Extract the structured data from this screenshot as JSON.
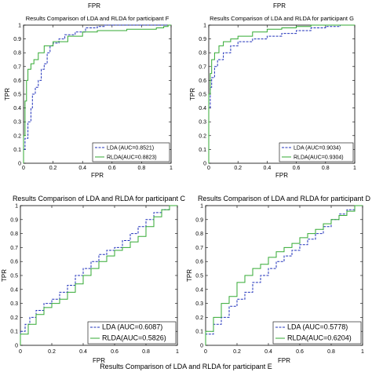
{
  "figure": {
    "fragment_top_left": "FPR",
    "fragment_top_right": "FPR",
    "footer_title": "Results Comparison of LDA and RLDA for participant E"
  },
  "colors": {
    "lda": "#2233bb",
    "rlda": "#33aa33",
    "axis": "#000000"
  },
  "chart_data": [
    {
      "type": "line",
      "title": "Results Comparison of LDA and RLDA for participant F",
      "xlabel": "FPR",
      "ylabel": "TPR",
      "xlim": [
        0,
        1
      ],
      "ylim": [
        0,
        1
      ],
      "xticks": [
        "0",
        "0.2",
        "0.4",
        "0.6",
        "0.8",
        "1"
      ],
      "yticks": [
        "0",
        "0.1",
        "0.2",
        "0.3",
        "0.4",
        "0.5",
        "0.6",
        "0.7",
        "0.8",
        "0.9",
        "1"
      ],
      "legend_position": "bottom-right",
      "series": [
        {
          "name": "LDA   (AUC=0.8521)",
          "style": "dashed",
          "x": [
            0,
            0.01,
            0.03,
            0.05,
            0.06,
            0.08,
            0.1,
            0.12,
            0.14,
            0.16,
            0.18,
            0.2,
            0.24,
            0.28,
            0.35,
            0.42,
            0.5,
            0.55,
            0.6,
            1
          ],
          "y": [
            0,
            0.1,
            0.18,
            0.3,
            0.4,
            0.5,
            0.55,
            0.6,
            0.68,
            0.72,
            0.8,
            0.85,
            0.87,
            0.9,
            0.93,
            0.95,
            0.98,
            0.99,
            1,
            1
          ]
        },
        {
          "name": "RLDA(AUC=0.8823)",
          "style": "solid",
          "x": [
            0,
            0.01,
            0.02,
            0.03,
            0.05,
            0.07,
            0.1,
            0.14,
            0.2,
            0.3,
            0.4,
            0.5,
            0.6,
            0.7,
            0.8,
            0.9,
            0.95,
            0.98,
            1
          ],
          "y": [
            0,
            0.2,
            0.45,
            0.6,
            0.68,
            0.72,
            0.75,
            0.8,
            0.85,
            0.88,
            0.92,
            0.95,
            0.96,
            0.96,
            0.97,
            0.97,
            0.98,
            0.99,
            1
          ]
        }
      ]
    },
    {
      "type": "line",
      "title": "Results Comparison of LDA and RLDA for participant G",
      "xlabel": "FPR",
      "ylabel": "TPR",
      "xlim": [
        0,
        1
      ],
      "ylim": [
        0,
        1
      ],
      "xticks": [
        "0",
        "0.2",
        "0.4",
        "0.6",
        "0.8",
        "1"
      ],
      "yticks": [
        "0",
        "0.1",
        "0.2",
        "0.3",
        "0.4",
        "0.5",
        "0.6",
        "0.7",
        "0.8",
        "0.9",
        "1"
      ],
      "legend_position": "bottom-right",
      "series": [
        {
          "name": "LDA   (AUC=0.9034)",
          "style": "dashed",
          "x": [
            0,
            0.01,
            0.02,
            0.04,
            0.06,
            0.1,
            0.15,
            0.2,
            0.3,
            0.4,
            0.5,
            0.6,
            0.7,
            0.8,
            0.9,
            1
          ],
          "y": [
            0,
            0.4,
            0.55,
            0.62,
            0.7,
            0.75,
            0.8,
            0.85,
            0.88,
            0.9,
            0.92,
            0.94,
            0.96,
            0.98,
            0.99,
            1
          ]
        },
        {
          "name": "RLDA(AUC=0.9304)",
          "style": "solid",
          "x": [
            0,
            0.01,
            0.02,
            0.04,
            0.07,
            0.1,
            0.15,
            0.2,
            0.3,
            0.4,
            0.5,
            0.6,
            0.7,
            0.8,
            0.9,
            1
          ],
          "y": [
            0,
            0.5,
            0.65,
            0.75,
            0.8,
            0.85,
            0.88,
            0.9,
            0.92,
            0.95,
            0.97,
            0.98,
            0.99,
            1,
            1,
            1
          ]
        }
      ]
    },
    {
      "type": "line",
      "title": "Results Comparison of LDA and RLDA for participant C",
      "xlabel": "FPR",
      "ylabel": "TPR",
      "xlim": [
        0,
        1
      ],
      "ylim": [
        0,
        1
      ],
      "xticks": [
        "0",
        "0.2",
        "0.4",
        "0.6",
        "0.8",
        "1"
      ],
      "yticks": [
        "0",
        "0.1",
        "0.2",
        "0.3",
        "0.4",
        "0.5",
        "0.6",
        "0.7",
        "0.8",
        "0.9",
        "1"
      ],
      "legend_position": "bottom-right",
      "series": [
        {
          "name": "LDA   (AUC=0.6087)",
          "style": "dashed",
          "x": [
            0,
            0.03,
            0.06,
            0.1,
            0.15,
            0.2,
            0.25,
            0.3,
            0.35,
            0.4,
            0.45,
            0.5,
            0.55,
            0.6,
            0.65,
            0.7,
            0.75,
            0.8,
            0.85,
            0.9,
            0.95,
            1
          ],
          "y": [
            0,
            0.1,
            0.15,
            0.2,
            0.25,
            0.3,
            0.33,
            0.38,
            0.43,
            0.5,
            0.55,
            0.6,
            0.65,
            0.68,
            0.7,
            0.75,
            0.8,
            0.85,
            0.9,
            0.95,
            0.97,
            1
          ]
        },
        {
          "name": "RLDA(AUC=0.5826)",
          "style": "solid",
          "x": [
            0,
            0.05,
            0.1,
            0.15,
            0.2,
            0.25,
            0.3,
            0.35,
            0.4,
            0.45,
            0.5,
            0.55,
            0.6,
            0.65,
            0.7,
            0.75,
            0.8,
            0.85,
            0.9,
            0.95,
            1
          ],
          "y": [
            0,
            0.08,
            0.15,
            0.22,
            0.27,
            0.3,
            0.33,
            0.38,
            0.44,
            0.5,
            0.55,
            0.6,
            0.64,
            0.68,
            0.7,
            0.74,
            0.78,
            0.85,
            0.92,
            0.97,
            1
          ]
        }
      ]
    },
    {
      "type": "line",
      "title": "Results Comparison of LDA and RLDA for participant D",
      "xlabel": "FPR",
      "ylabel": "TPR",
      "xlim": [
        0,
        1
      ],
      "ylim": [
        0,
        1
      ],
      "xticks": [
        "0",
        "0.2",
        "0.4",
        "0.6",
        "0.8",
        "1"
      ],
      "yticks": [
        "0",
        "0.1",
        "0.2",
        "0.3",
        "0.4",
        "0.5",
        "0.6",
        "0.7",
        "0.8",
        "0.9",
        "1"
      ],
      "legend_position": "bottom-right",
      "series": [
        {
          "name": "LDA   (AUC=0.5778)",
          "style": "dashed",
          "x": [
            0,
            0.05,
            0.1,
            0.15,
            0.2,
            0.25,
            0.3,
            0.35,
            0.4,
            0.45,
            0.5,
            0.55,
            0.6,
            0.65,
            0.7,
            0.75,
            0.8,
            0.85,
            0.9,
            0.95,
            1
          ],
          "y": [
            0,
            0.08,
            0.15,
            0.2,
            0.28,
            0.33,
            0.38,
            0.45,
            0.5,
            0.55,
            0.6,
            0.64,
            0.68,
            0.72,
            0.76,
            0.8,
            0.85,
            0.9,
            0.94,
            0.97,
            1
          ]
        },
        {
          "name": "RLDA(AUC=0.6204)",
          "style": "solid",
          "x": [
            0,
            0.05,
            0.1,
            0.15,
            0.2,
            0.25,
            0.3,
            0.35,
            0.4,
            0.45,
            0.5,
            0.55,
            0.6,
            0.65,
            0.7,
            0.75,
            0.8,
            0.85,
            0.9,
            0.95,
            1
          ],
          "y": [
            0,
            0.1,
            0.2,
            0.3,
            0.35,
            0.45,
            0.5,
            0.55,
            0.58,
            0.63,
            0.67,
            0.7,
            0.73,
            0.77,
            0.8,
            0.83,
            0.87,
            0.9,
            0.93,
            0.96,
            1
          ]
        }
      ]
    }
  ]
}
